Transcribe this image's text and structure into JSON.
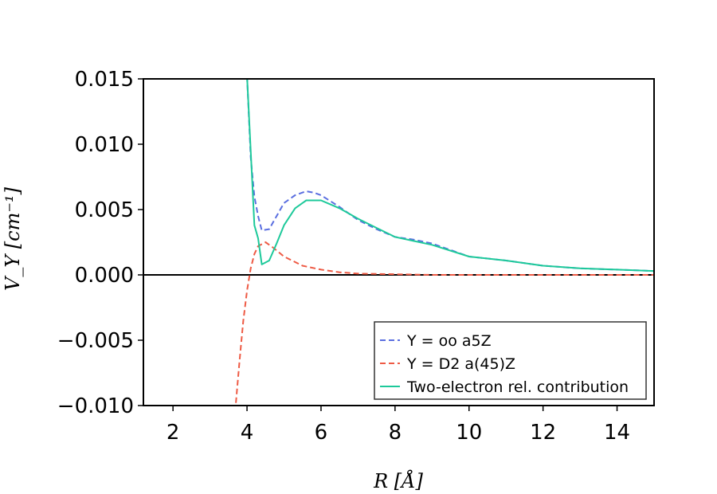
{
  "chart_data": {
    "type": "line",
    "xlabel": "R [Å]",
    "ylabel": "V_Y [cm⁻¹]",
    "xlim": [
      1.2,
      15
    ],
    "ylim": [
      -0.01,
      0.015
    ],
    "x_ticks": [
      2,
      4,
      6,
      8,
      10,
      12,
      14
    ],
    "x_tick_labels": [
      "2",
      "4",
      "6",
      "8",
      "10",
      "12",
      "14"
    ],
    "y_ticks": [
      0.015,
      0.01,
      0.005,
      0.0,
      -0.005,
      -0.01
    ],
    "y_tick_labels": [
      "0.015",
      "0.010",
      "0.005",
      "0.000",
      "−0.005",
      "−0.010"
    ],
    "grid": false,
    "legend_position": "lower-right",
    "series": [
      {
        "name": "Y = oo a5Z",
        "color": "#5a6ee0",
        "style": "dashed",
        "x": [
          4.0,
          4.1,
          4.2,
          4.3,
          4.4,
          4.6,
          4.8,
          5.0,
          5.3,
          5.6,
          5.8,
          6.0,
          6.5,
          7.0,
          7.5,
          8.0,
          8.5,
          9.0,
          10.0,
          11.0,
          12.0,
          13.0,
          14.0,
          15.0
        ],
        "y": [
          0.0152,
          0.009,
          0.006,
          0.0045,
          0.0034,
          0.0035,
          0.0045,
          0.0055,
          0.0061,
          0.0064,
          0.0063,
          0.0061,
          0.0052,
          0.0042,
          0.0035,
          0.0029,
          0.0027,
          0.0024,
          0.0014,
          0.0011,
          0.0007,
          0.0005,
          0.0004,
          0.0003
        ]
      },
      {
        "name": "Y = D2 a(45)Z",
        "color": "#ee5a44",
        "style": "dashed",
        "x": [
          3.7,
          3.8,
          3.9,
          4.0,
          4.1,
          4.2,
          4.3,
          4.5,
          4.7,
          5.0,
          5.5,
          6.0,
          6.5,
          7.0,
          8.0,
          9.0,
          10.0,
          12.0,
          14.0,
          15.0
        ],
        "y": [
          -0.0098,
          -0.0065,
          -0.0035,
          -0.0012,
          0.0005,
          0.0016,
          0.0022,
          0.0025,
          0.0021,
          0.0014,
          0.0007,
          0.0004,
          0.0002,
          0.0001,
          5e-05,
          0.0,
          0.0,
          0.0,
          0.0,
          0.0
        ]
      },
      {
        "name": "Two-electron rel. contribution",
        "color": "#1dc99a",
        "style": "solid",
        "x": [
          4.0,
          4.1,
          4.2,
          4.3,
          4.4,
          4.6,
          4.8,
          5.0,
          5.3,
          5.6,
          6.0,
          6.5,
          7.0,
          7.5,
          8.0,
          8.5,
          9.0,
          10.0,
          11.0,
          12.0,
          13.0,
          14.0,
          15.0
        ],
        "y": [
          0.0152,
          0.0095,
          0.0038,
          0.0028,
          0.0008,
          0.0011,
          0.0024,
          0.0038,
          0.0051,
          0.0057,
          0.0057,
          0.0051,
          0.0043,
          0.0036,
          0.0029,
          0.0026,
          0.0023,
          0.0014,
          0.0011,
          0.0007,
          0.0005,
          0.0004,
          0.0003
        ]
      }
    ]
  }
}
